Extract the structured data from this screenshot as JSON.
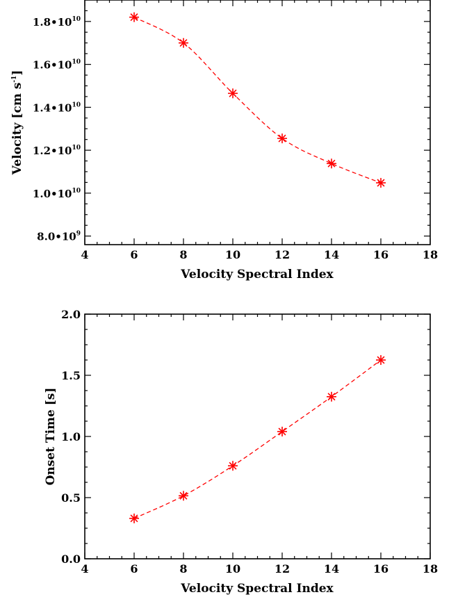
{
  "chart_data": [
    {
      "type": "line",
      "xlabel": "Velocity Spectral Index",
      "ylabel": "Velocity [cm s",
      "ylabel_sup": "-1",
      "ylabel_close": "]",
      "xlim": [
        4,
        18
      ],
      "ylim": [
        7600000000.0,
        19000000000.0
      ],
      "x_ticks": [
        4,
        6,
        8,
        10,
        12,
        14,
        16,
        18
      ],
      "x_tick_labels": [
        "4",
        "6",
        "8",
        "10",
        "12",
        "14",
        "16",
        "18"
      ],
      "y_ticks": [
        8000000000.0,
        10000000000.0,
        12000000000.0,
        14000000000.0,
        16000000000.0,
        18000000000.0
      ],
      "y_tick_labels": [
        {
          "base": "8.0•10",
          "exp": "9"
        },
        {
          "base": "1.0•10",
          "exp": "10"
        },
        {
          "base": "1.2•10",
          "exp": "10"
        },
        {
          "base": "1.4•10",
          "exp": "10"
        },
        {
          "base": "1.6•10",
          "exp": "10"
        },
        {
          "base": "1.8•10",
          "exp": "10"
        }
      ],
      "series": [
        {
          "x": [
            6,
            8,
            10,
            12,
            14,
            16
          ],
          "values": [
            18200000000.0,
            17000000000.0,
            14650000000.0,
            12550000000.0,
            11380000000.0,
            10480000000.0
          ]
        }
      ],
      "line_style": "dashed",
      "marker": "asterisk",
      "color": "#ff0000",
      "grid": false
    },
    {
      "type": "line",
      "xlabel": "Velocity Spectral Index",
      "ylabel": "Onset Time [s]",
      "xlim": [
        4,
        18
      ],
      "ylim": [
        0,
        2.0
      ],
      "x_ticks": [
        4,
        6,
        8,
        10,
        12,
        14,
        16,
        18
      ],
      "x_tick_labels": [
        "4",
        "6",
        "8",
        "10",
        "12",
        "14",
        "16",
        "18"
      ],
      "y_ticks": [
        0.0,
        0.5,
        1.0,
        1.5,
        2.0
      ],
      "y_tick_labels": [
        "0.0",
        "0.5",
        "1.0",
        "1.5",
        "2.0"
      ],
      "series": [
        {
          "x": [
            6,
            8,
            10,
            12,
            14,
            16
          ],
          "values": [
            0.33,
            0.515,
            0.76,
            1.04,
            1.325,
            1.625
          ]
        }
      ],
      "line_style": "dashed",
      "marker": "asterisk",
      "color": "#ff0000",
      "grid": false
    }
  ]
}
